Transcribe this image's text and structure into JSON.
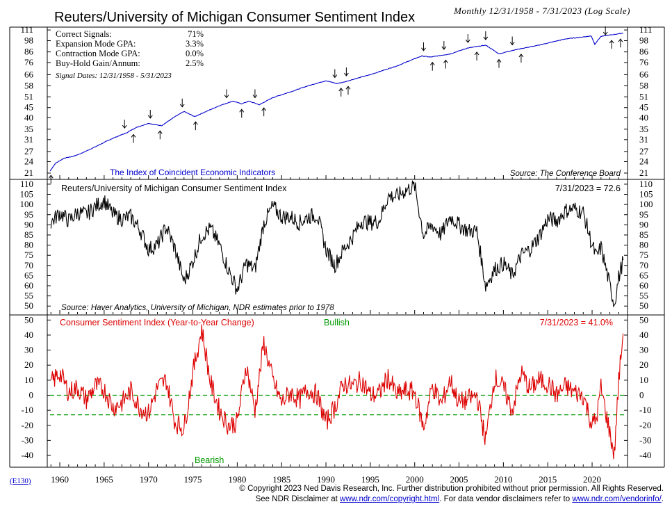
{
  "header": {
    "title": "Reuters/University of Michigan Consumer Sentiment Index",
    "subtitle": "Monthly 12/31/1958 - 7/31/2023 (Log Scale)"
  },
  "panel1": {
    "stats": [
      {
        "label": "Correct Signals:",
        "value": "71%"
      },
      {
        "label": "Expansion Mode GPA:",
        "value": "3.3%"
      },
      {
        "label": "Contraction Mode GPA:",
        "value": "0.0%"
      },
      {
        "label": "Buy-Hold Gain/Annum:",
        "value": "2.5%"
      }
    ],
    "signal_dates": "Signal Dates: 12/31/1958 - 5/31/2023",
    "legend": "The Index of Coincident Economic Indicators",
    "source": "Source: The Conference Board"
  },
  "panel2": {
    "title": "Reuters/University of Michigan Consumer Sentiment Index",
    "latest": "7/31/2023 = 72.6",
    "source": "Source: Haver Analytics, University of Michigan, NDR estimates prior to 1978"
  },
  "panel3": {
    "title": "Consumer Sentiment Index (Year-to-Year Change)",
    "latest": "7/31/2023 = 41.0%",
    "bullish": "Bullish",
    "bearish": "Bearish"
  },
  "footer": {
    "code": "(E130)",
    "line1": "© Copyright 2023 Ned Davis Research, Inc.  Further distribution prohibited without prior permission.  All Rights Reserved.",
    "line2_pre": "See NDR Disclaimer at ",
    "link1": "www.ndr.com/copyright.html",
    "line2_mid": ". For data vendor disclaimers refer to ",
    "link2": "www.ndr.com/vendorinfo/",
    "line2_post": "."
  },
  "colors": {
    "coincident": "#0000cc",
    "sentiment": "#000000",
    "yoy": "#dd0000",
    "threshold": "#009900",
    "legend_blue": "#0000cc",
    "bullish": "#009900",
    "bearish": "#009900"
  },
  "chart_data": [
    {
      "type": "line",
      "title": "The Index of Coincident Economic Indicators",
      "scale": "log",
      "xlim": [
        1958.9,
        2023.6
      ],
      "ylim": [
        20,
        112
      ],
      "yticks": [
        21,
        24,
        27,
        31,
        35,
        40,
        45,
        51,
        58,
        66,
        76,
        86,
        98,
        111
      ],
      "x": [
        1958.9,
        1959.5,
        1960.5,
        1961.5,
        1962.5,
        1964,
        1966,
        1967.5,
        1968.5,
        1970,
        1970.5,
        1971.5,
        1973,
        1974,
        1975.2,
        1976.5,
        1978,
        1979.5,
        1980.5,
        1981.3,
        1982.5,
        1984,
        1986,
        1988,
        1990,
        1991.2,
        1992,
        1995,
        1998,
        2000.8,
        2001.8,
        2004,
        2006,
        2008,
        2009.5,
        2011,
        2014,
        2017,
        2019.9,
        2020.3,
        2021,
        2023.5
      ],
      "y": [
        21.5,
        23.5,
        25,
        25.5,
        26.5,
        28.5,
        31.5,
        33.5,
        35.5,
        37.5,
        37,
        36.5,
        40.5,
        43,
        40.5,
        43,
        46,
        48.5,
        47,
        48.5,
        46.5,
        50.5,
        54,
        58,
        61.5,
        59.5,
        60.5,
        66,
        73,
        82,
        81,
        84,
        90,
        93,
        84,
        87.5,
        93,
        100,
        103.5,
        94,
        103,
        107
      ]
    },
    {
      "type": "line",
      "title": "Reuters/University of Michigan Consumer Sentiment Index",
      "xlim": [
        1958.9,
        2023.6
      ],
      "ylim": [
        47,
        111
      ],
      "yticks": [
        50,
        55,
        60,
        65,
        70,
        75,
        80,
        85,
        90,
        95,
        100,
        105,
        110
      ],
      "x": [
        1959,
        1960,
        1961,
        1962,
        1963,
        1964,
        1965,
        1966,
        1967,
        1968,
        1969,
        1970,
        1971,
        1972,
        1973,
        1974,
        1975,
        1976,
        1977,
        1978,
        1979,
        1980,
        1981,
        1982,
        1983,
        1984,
        1985,
        1986,
        1987,
        1988,
        1989,
        1990,
        1991,
        1992,
        1993,
        1994,
        1995,
        1996,
        1997,
        1998,
        1999,
        2000,
        2001,
        2002,
        2003,
        2004,
        2005,
        2006,
        2007,
        2008,
        2009,
        2010,
        2011,
        2012,
        2013,
        2014,
        2015,
        2016,
        2017,
        2018,
        2019,
        2020,
        2020.5,
        2021,
        2022,
        2022.5,
        2023,
        2023.5
      ],
      "y": [
        91,
        96,
        92,
        96,
        95,
        99,
        102,
        95,
        93,
        94,
        88,
        78,
        80,
        89,
        78,
        62,
        72,
        85,
        88,
        80,
        68,
        58,
        71,
        68,
        91,
        99,
        94,
        94,
        91,
        94,
        95,
        78,
        70,
        78,
        84,
        92,
        91,
        92,
        104,
        104,
        107,
        109,
        85,
        90,
        85,
        94,
        90,
        87,
        87,
        60,
        68,
        71,
        65,
        75,
        78,
        84,
        93,
        92,
        97,
        98,
        96,
        80,
        74,
        79,
        60,
        51,
        64,
        72.6
      ]
    },
    {
      "type": "line",
      "title": "Consumer Sentiment Index (Year-to-Year Change)",
      "ylabel": "",
      "xlim": [
        1958.9,
        2023.6
      ],
      "ylim": [
        -46,
        52
      ],
      "yticks": [
        50,
        40,
        30,
        20,
        10,
        0,
        -10,
        -20,
        -30,
        -40
      ],
      "thresholds": [
        0,
        -13
      ],
      "x": [
        1959,
        1960,
        1961,
        1962,
        1963,
        1964,
        1965,
        1966,
        1967,
        1968,
        1969,
        1970,
        1971,
        1972,
        1973,
        1974,
        1975,
        1976,
        1977,
        1978,
        1979,
        1980,
        1981,
        1982,
        1983,
        1984,
        1985,
        1986,
        1987,
        1988,
        1989,
        1990,
        1991,
        1992,
        1993,
        1994,
        1995,
        1996,
        1997,
        1998,
        1999,
        2000,
        2001,
        2002,
        2003,
        2004,
        2005,
        2006,
        2007,
        2008,
        2009,
        2010,
        2011,
        2012,
        2013,
        2014,
        2015,
        2016,
        2017,
        2018,
        2019,
        2020,
        2020.5,
        2021,
        2022,
        2022.5,
        2023,
        2023.5
      ],
      "y": [
        8,
        15,
        2,
        5,
        -3,
        6,
        4,
        -8,
        -5,
        3,
        -8,
        -12,
        5,
        10,
        -18,
        -22,
        15,
        44,
        8,
        -10,
        -20,
        -18,
        20,
        -10,
        35,
        10,
        -5,
        2,
        -3,
        4,
        0,
        -18,
        -8,
        8,
        6,
        10,
        0,
        1,
        12,
        0,
        3,
        2,
        -22,
        6,
        -6,
        10,
        -5,
        -3,
        0,
        -30,
        12,
        5,
        -10,
        15,
        4,
        10,
        8,
        0,
        6,
        2,
        0,
        -20,
        -15,
        5,
        -25,
        -40,
        10,
        41
      ]
    }
  ]
}
